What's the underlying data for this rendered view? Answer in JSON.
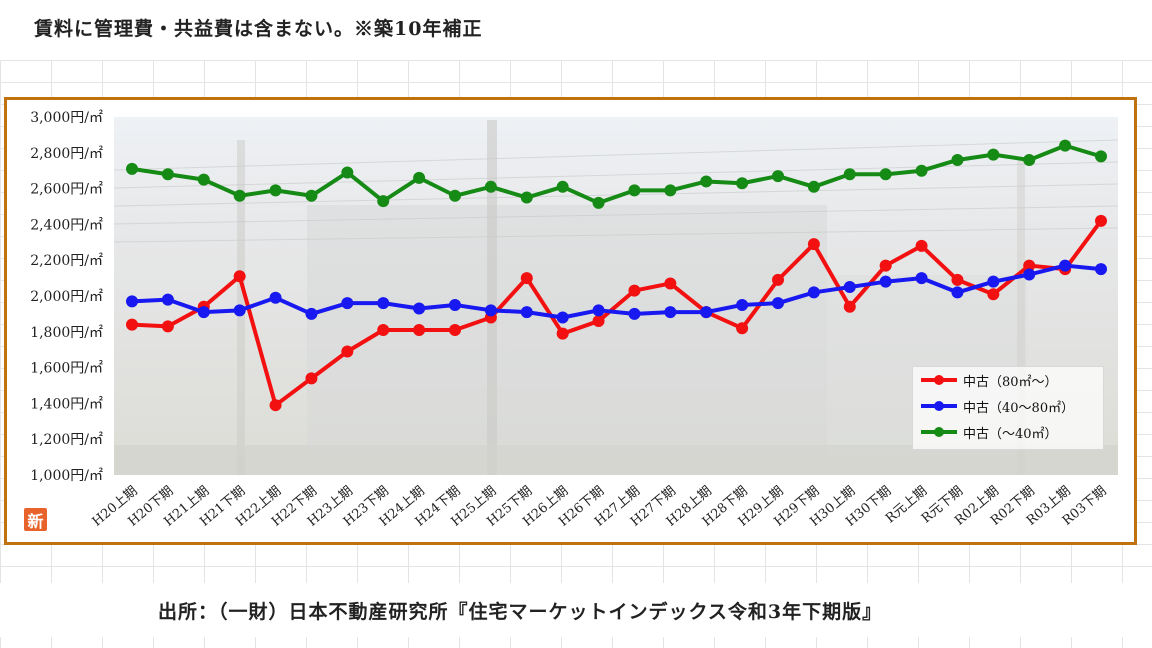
{
  "header": {
    "note": "賃料に管理費・共益費は含まない。※築10年補正"
  },
  "footer": {
    "source": "出所：（一財）日本不動産研究所『住宅マーケットインデックス令和3年下期版』"
  },
  "badge": {
    "label": "新"
  },
  "colors": {
    "frame": "#c0720f",
    "series": [
      "#f21010",
      "#1818f0",
      "#158a15"
    ]
  },
  "chart_data": {
    "type": "line",
    "title": "",
    "xlabel": "",
    "ylabel": "",
    "ylim": [
      1000,
      3000
    ],
    "yticks": [
      1000,
      1200,
      1400,
      1600,
      1800,
      2000,
      2200,
      2400,
      2600,
      2800,
      3000
    ],
    "ytick_labels": [
      "1,000円/㎡",
      "1,200円/㎡",
      "1,400円/㎡",
      "1,600円/㎡",
      "1,800円/㎡",
      "2,000円/㎡",
      "2,200円/㎡",
      "2,400円/㎡",
      "2,600円/㎡",
      "2,800円/㎡",
      "3,000円/㎡"
    ],
    "grid": false,
    "legend_position": "bottom-right",
    "categories": [
      "H20上期",
      "H20下期",
      "H21上期",
      "H21下期",
      "H22上期",
      "H22下期",
      "H23上期",
      "H23下期",
      "H24上期",
      "H24下期",
      "H25上期",
      "H25下期",
      "H26上期",
      "H26下期",
      "H27上期",
      "H27下期",
      "H28上期",
      "H28下期",
      "H29上期",
      "H29下期",
      "H30上期",
      "H30下期",
      "R元上期",
      "R元下期",
      "R02上期",
      "R02下期",
      "R03上期",
      "R03下期"
    ],
    "series": [
      {
        "name": "中古（80㎡～）",
        "values": [
          1840,
          1830,
          1940,
          2110,
          1390,
          1540,
          1690,
          1810,
          1810,
          1810,
          1880,
          2100,
          1790,
          1860,
          2030,
          2070,
          1910,
          1820,
          2090,
          2290,
          1940,
          2170,
          2280,
          2090,
          2010,
          2170,
          2150,
          2420
        ]
      },
      {
        "name": "中古（40～80㎡）",
        "values": [
          1970,
          1980,
          1910,
          1920,
          1990,
          1900,
          1960,
          1960,
          1930,
          1950,
          1920,
          1910,
          1880,
          1920,
          1900,
          1910,
          1910,
          1950,
          1960,
          2020,
          2050,
          2080,
          2100,
          2020,
          2080,
          2120,
          2170,
          2150
        ]
      },
      {
        "name": "中古（～40㎡）",
        "values": [
          2710,
          2680,
          2650,
          2560,
          2590,
          2560,
          2690,
          2530,
          2660,
          2560,
          2610,
          2550,
          2610,
          2520,
          2590,
          2590,
          2640,
          2630,
          2670,
          2610,
          2680,
          2680,
          2700,
          2760,
          2790,
          2760,
          2840,
          2780
        ]
      }
    ]
  }
}
